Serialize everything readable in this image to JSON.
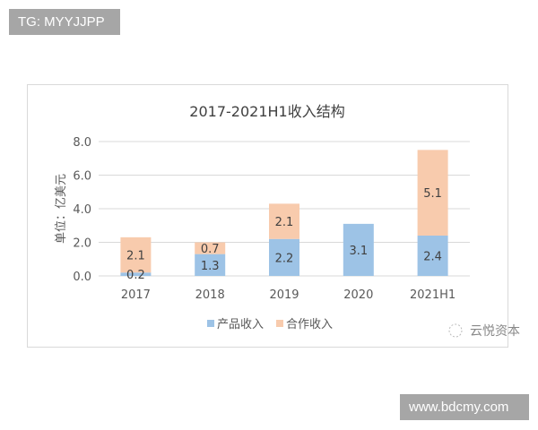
{
  "watermarks": {
    "top_left": "TG: MYYJJPP",
    "bottom_right": "www.bdcmy.com",
    "brand": "云悦资本"
  },
  "chart_data": {
    "type": "bar",
    "stacked": true,
    "title": "2017-2021H1收入结构",
    "ylabel": "单位：亿美元",
    "xlabel": "",
    "ylim": [
      0,
      8
    ],
    "yticks": [
      "0.0",
      "2.0",
      "4.0",
      "6.0",
      "8.0"
    ],
    "grid": true,
    "legend_position": "bottom",
    "categories": [
      "2017",
      "2018",
      "2019",
      "2020",
      "2021H1"
    ],
    "series": [
      {
        "name": "产品收入",
        "color": "#9dc3e6",
        "values": [
          0.2,
          1.3,
          2.2,
          3.1,
          2.4
        ]
      },
      {
        "name": "合作收入",
        "color": "#f8cbad",
        "values": [
          2.1,
          0.7,
          2.1,
          0,
          5.1
        ]
      }
    ]
  }
}
